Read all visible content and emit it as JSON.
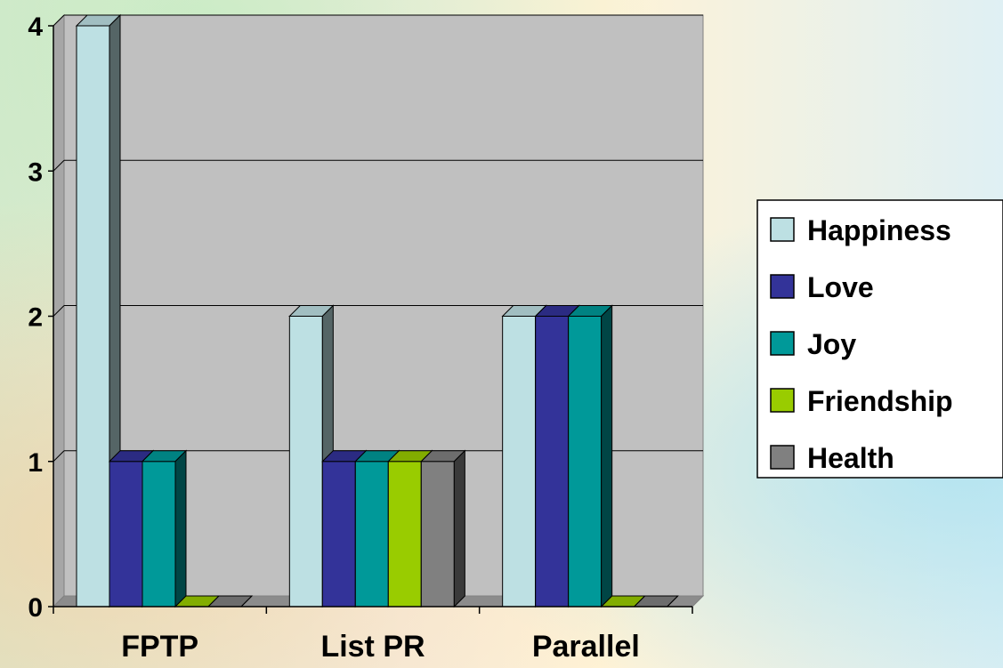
{
  "chart_data": {
    "type": "bar",
    "categories": [
      "FPTP",
      "List PR",
      "Parallel"
    ],
    "series": [
      {
        "name": "Happiness",
        "values": [
          4,
          2,
          2
        ],
        "color": "#bde0e3"
      },
      {
        "name": "Love",
        "values": [
          1,
          1,
          2
        ],
        "color": "#333399"
      },
      {
        "name": "Joy",
        "values": [
          1,
          1,
          2
        ],
        "color": "#009999"
      },
      {
        "name": "Friendship",
        "values": [
          0,
          1,
          0
        ],
        "color": "#99cc00"
      },
      {
        "name": "Health",
        "values": [
          0,
          1,
          0
        ],
        "color": "#808080"
      }
    ],
    "yticks": [
      "0",
      "1",
      "2",
      "3",
      "4"
    ],
    "ylim": [
      0,
      4
    ],
    "grid": true,
    "legend": "right",
    "style": "3d-clustered-column"
  }
}
